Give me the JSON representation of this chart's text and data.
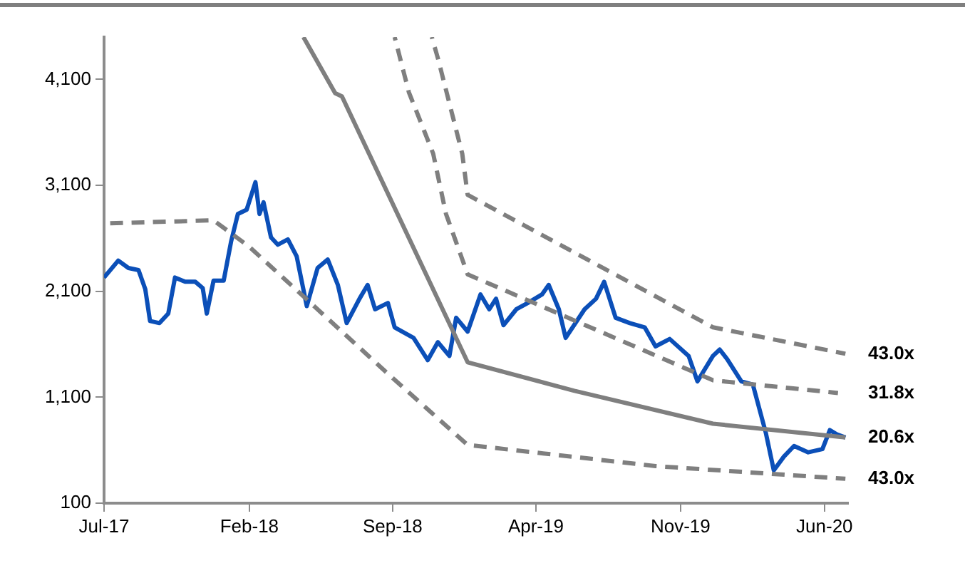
{
  "chart_data": {
    "type": "line",
    "marker": "none",
    "legend": false,
    "grid": false,
    "xlim": [
      "2017-07-01",
      "2020-07-06"
    ],
    "xticks": [
      {
        "value": "2017-07-01",
        "label": "Jul-17"
      },
      {
        "value": "2018-02-01",
        "label": "Feb-18"
      },
      {
        "value": "2018-09-01",
        "label": "Sep-18"
      },
      {
        "value": "2019-04-01",
        "label": "Apr-19"
      },
      {
        "value": "2019-11-01",
        "label": "Nov-19"
      },
      {
        "value": "2020-06-01",
        "label": "Jun-20"
      }
    ],
    "ylim": [
      100,
      4500
    ],
    "yticks": [
      {
        "value": 100,
        "label": "100"
      },
      {
        "value": 1100,
        "label": "1,100"
      },
      {
        "value": 2100,
        "label": "2,100"
      },
      {
        "value": 3100,
        "label": "3,100"
      },
      {
        "value": 4100,
        "label": "4,100"
      }
    ],
    "series": [
      {
        "name": "43.0x",
        "color": "#7f7f7f",
        "line_style": "dashed",
        "x": [
          "2018-10-29",
          "2018-11-07",
          "2018-12-13",
          "2018-12-21",
          "2019-12-19",
          "2020-07-02"
        ],
        "values": [
          4500,
          4300,
          3400,
          3010,
          1760,
          1510
        ]
      },
      {
        "name": "31.8x",
        "color": "#7f7f7f",
        "line_style": "dashed",
        "x": [
          "2018-09-04",
          "2018-09-25",
          "2018-10-31",
          "2018-11-19",
          "2018-12-21",
          "2019-12-19",
          "2020-06-21"
        ],
        "values": [
          4500,
          3980,
          3400,
          2830,
          2260,
          1260,
          1140
        ]
      },
      {
        "name": "20.6x",
        "color": "#7f7f7f",
        "line_style": "solid",
        "x": [
          "2018-04-22",
          "2018-06-08",
          "2018-06-18",
          "2018-07-28",
          "2018-12-21",
          "2019-05-28",
          "2019-12-19",
          "2020-07-02"
        ],
        "values": [
          4500,
          3970,
          3940,
          3400,
          1430,
          1160,
          850,
          720
        ]
      },
      {
        "name": "43.0x",
        "color": "#7f7f7f",
        "line_style": "dashed",
        "x": [
          "2017-07-01",
          "2017-12-10",
          "2018-02-01",
          "2018-08-27",
          "2018-12-21",
          "2019-09-25",
          "2020-07-02"
        ],
        "values": [
          2740,
          2770,
          2520,
          1310,
          650,
          450,
          330
        ]
      },
      {
        "color": "#0b4fb8",
        "line_style": "solid",
        "x": [
          "2017-07-01",
          "2017-07-22",
          "2017-08-06",
          "2017-08-21",
          "2017-08-31",
          "2017-09-07",
          "2017-09-21",
          "2017-10-04",
          "2017-10-14",
          "2017-10-29",
          "2017-11-13",
          "2017-11-24",
          "2017-11-30",
          "2017-12-10",
          "2017-12-25",
          "2018-01-05",
          "2018-01-15",
          "2018-01-28",
          "2018-02-10",
          "2018-02-16",
          "2018-02-22",
          "2018-03-05",
          "2018-03-15",
          "2018-03-30",
          "2018-04-12",
          "2018-04-27",
          "2018-05-13",
          "2018-05-28",
          "2018-06-12",
          "2018-06-25",
          "2018-07-14",
          "2018-07-26",
          "2018-08-06",
          "2018-08-25",
          "2018-09-04",
          "2018-10-02",
          "2018-10-23",
          "2018-11-07",
          "2018-11-24",
          "2018-12-04",
          "2018-12-21",
          "2019-01-09",
          "2019-01-22",
          "2019-02-01",
          "2019-02-12",
          "2019-03-03",
          "2019-03-20",
          "2019-04-10",
          "2019-04-20",
          "2019-05-05",
          "2019-05-15",
          "2019-06-12",
          "2019-06-29",
          "2019-07-11",
          "2019-07-28",
          "2019-08-18",
          "2019-09-09",
          "2019-09-25",
          "2019-10-16",
          "2019-11-13",
          "2019-11-26",
          "2019-12-19",
          "2019-12-29",
          "2020-01-09",
          "2020-01-30",
          "2020-02-16",
          "2020-03-06",
          "2020-03-18",
          "2020-04-02",
          "2020-04-17",
          "2020-05-08",
          "2020-05-29",
          "2020-06-09",
          "2020-06-19",
          "2020-07-02"
        ],
        "values": [
          2230,
          2390,
          2320,
          2300,
          2120,
          1820,
          1800,
          1890,
          2230,
          2190,
          2190,
          2130,
          1890,
          2200,
          2200,
          2570,
          2830,
          2870,
          3130,
          2830,
          2940,
          2610,
          2540,
          2590,
          2430,
          1960,
          2320,
          2400,
          2160,
          1800,
          2030,
          2160,
          1930,
          1990,
          1760,
          1660,
          1450,
          1620,
          1490,
          1850,
          1720,
          2070,
          1930,
          2030,
          1780,
          1930,
          1990,
          2070,
          2160,
          1930,
          1660,
          1930,
          2030,
          2190,
          1850,
          1800,
          1760,
          1580,
          1650,
          1490,
          1250,
          1490,
          1550,
          1460,
          1250,
          1220,
          770,
          410,
          540,
          640,
          580,
          610,
          790,
          750,
          720
        ]
      }
    ]
  }
}
